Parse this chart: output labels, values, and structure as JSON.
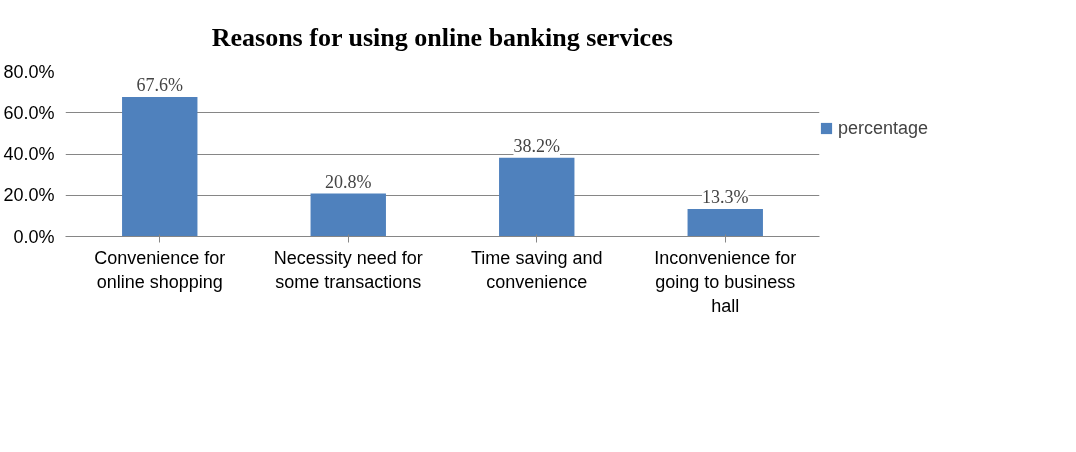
{
  "chart_data": {
    "type": "bar",
    "title": "Reasons for using online banking services",
    "categories": [
      "Convenience for online shopping",
      "Necessity need for some transactions",
      "Time saving and convenience",
      "Inconvenience for going to business hall"
    ],
    "series": [
      {
        "name": "percentage",
        "color": "#4f81bd",
        "values": [
          67.6,
          20.8,
          38.2,
          13.3
        ],
        "value_labels": [
          "67.6%",
          "20.8%",
          "38.2%",
          "13.3%"
        ]
      }
    ],
    "ylim": [
      0,
      80
    ],
    "yticks": [
      {
        "value": 0,
        "label": "0.0%"
      },
      {
        "value": 20,
        "label": "20.0%"
      },
      {
        "value": 40,
        "label": "40.0%"
      },
      {
        "value": 60,
        "label": "60.0%"
      },
      {
        "value": 80,
        "label": "80.0%"
      }
    ],
    "grid": "y",
    "legend": "right"
  }
}
